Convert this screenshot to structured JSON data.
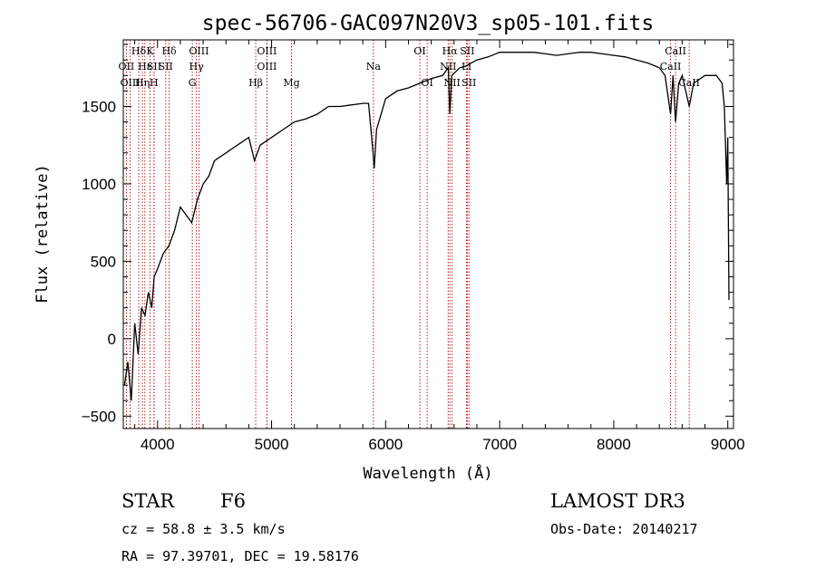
{
  "chart_data": {
    "type": "line",
    "title": "spec-56706-GAC097N20V3_sp05-101.fits",
    "xlabel": "Wavelength (Å)",
    "ylabel": "Flux (relative)",
    "xlim": [
      3700,
      9050
    ],
    "ylim": [
      -580,
      1930
    ],
    "x_ticks": [
      4000,
      5000,
      6000,
      7000,
      8000,
      9000
    ],
    "x_tick_labels": [
      "4000",
      "5000",
      "6000",
      "7000",
      "8000",
      "9000"
    ],
    "y_ticks": [
      -500,
      0,
      500,
      1000,
      1500
    ],
    "y_tick_labels": [
      "−500",
      "0",
      "500",
      "1000",
      "1500"
    ],
    "series": [
      {
        "name": "spectrum",
        "x": [
          3710,
          3740,
          3770,
          3800,
          3830,
          3860,
          3890,
          3920,
          3950,
          3970,
          4000,
          4050,
          4100,
          4150,
          4200,
          4250,
          4300,
          4350,
          4400,
          4450,
          4500,
          4600,
          4700,
          4800,
          4850,
          4900,
          5000,
          5100,
          5200,
          5300,
          5400,
          5500,
          5600,
          5700,
          5800,
          5850,
          5890,
          5900,
          5920,
          6000,
          6100,
          6200,
          6300,
          6400,
          6500,
          6550,
          6563,
          6580,
          6650,
          6700,
          6750,
          6800,
          6900,
          7000,
          7100,
          7200,
          7300,
          7400,
          7500,
          7600,
          7700,
          7800,
          7900,
          8000,
          8100,
          8200,
          8300,
          8400,
          8450,
          8498,
          8520,
          8542,
          8570,
          8600,
          8662,
          8700,
          8800,
          8900,
          8950,
          8970,
          8990,
          9000,
          9010
        ],
        "values": [
          -300,
          -150,
          -400,
          100,
          -100,
          200,
          150,
          300,
          200,
          400,
          450,
          550,
          600,
          700,
          850,
          800,
          750,
          900,
          1000,
          1050,
          1150,
          1200,
          1250,
          1300,
          1150,
          1250,
          1300,
          1350,
          1400,
          1420,
          1450,
          1500,
          1500,
          1510,
          1520,
          1520,
          1200,
          1100,
          1350,
          1550,
          1600,
          1620,
          1650,
          1680,
          1700,
          1750,
          1450,
          1700,
          1750,
          1760,
          1780,
          1800,
          1820,
          1850,
          1850,
          1850,
          1850,
          1840,
          1830,
          1840,
          1850,
          1850,
          1840,
          1830,
          1820,
          1800,
          1780,
          1750,
          1700,
          1450,
          1700,
          1400,
          1650,
          1700,
          1500,
          1650,
          1700,
          1700,
          1650,
          1500,
          1000,
          1300,
          250
        ]
      }
    ],
    "emission_lines": [
      {
        "name": "Hδ",
        "wavelength": 3835,
        "row": 1
      },
      {
        "name": "OII",
        "wavelength": 3727,
        "row": 2
      },
      {
        "name": "OIII",
        "wavelength": 3760,
        "row": 3
      },
      {
        "name": "Hε",
        "wavelength": 3889,
        "row": 2
      },
      {
        "name": "Hη",
        "wavelength": 3868,
        "row": 3
      },
      {
        "name": "K",
        "wavelength": 3934,
        "row": 1
      },
      {
        "name": "SII",
        "wavelength": 3970,
        "row": 2
      },
      {
        "name": "H",
        "wavelength": 3969,
        "row": 3
      },
      {
        "name": "Hδ",
        "wavelength": 4102,
        "row": 1
      },
      {
        "name": "SII",
        "wavelength": 4072,
        "row": 2
      },
      {
        "name": "OIII",
        "wavelength": 4363,
        "row": 1
      },
      {
        "name": "Hγ",
        "wavelength": 4341,
        "row": 2
      },
      {
        "name": "G",
        "wavelength": 4305,
        "row": 3
      },
      {
        "name": "OIII",
        "wavelength": 4959,
        "row": 1
      },
      {
        "name": "OIII",
        "wavelength": 4959,
        "row": 2
      },
      {
        "name": "Hβ",
        "wavelength": 4861,
        "row": 3
      },
      {
        "name": "Mg",
        "wavelength": 5175,
        "row": 3
      },
      {
        "name": "Na",
        "wavelength": 5893,
        "row": 2
      },
      {
        "name": "OI",
        "wavelength": 6300,
        "row": 1
      },
      {
        "name": "OI",
        "wavelength": 6364,
        "row": 3
      },
      {
        "name": "Hα",
        "wavelength": 6563,
        "row": 1
      },
      {
        "name": "NII",
        "wavelength": 6548,
        "row": 2
      },
      {
        "name": "NII",
        "wavelength": 6583,
        "row": 3
      },
      {
        "name": "SII",
        "wavelength": 6716,
        "row": 1
      },
      {
        "name": "Li",
        "wavelength": 6708,
        "row": 2
      },
      {
        "name": "SII",
        "wavelength": 6731,
        "row": 3
      },
      {
        "name": "CaII",
        "wavelength": 8542,
        "row": 1
      },
      {
        "name": "CaII",
        "wavelength": 8498,
        "row": 2
      },
      {
        "name": "CaII",
        "wavelength": 8662,
        "row": 3
      }
    ]
  },
  "info": {
    "object_class": "STAR",
    "subclass": "F6",
    "survey": "LAMOST DR3",
    "redshift": "cz = 58.8 ± 3.5 km/s",
    "obs_date": "Obs-Date: 20140217",
    "coords": "RA =  97.39701, DEC =  19.58176"
  }
}
